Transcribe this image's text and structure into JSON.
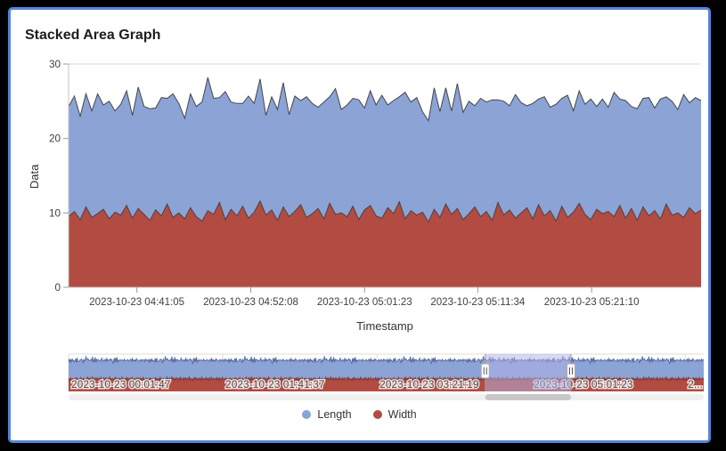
{
  "title": "Stacked Area Graph",
  "colors": {
    "frame_border": "#5585d8",
    "length_fill": "#8ca3d6",
    "width_fill": "#b24b42",
    "edge_stroke": "#454545",
    "nav_length_stroke": "#56689e",
    "nav_width_stroke": "#7c3a34",
    "selection_overlay": "rgba(176,179,230,0.52)"
  },
  "chart_data": {
    "type": "area",
    "stacked": true,
    "title": "Stacked Area Graph",
    "xlabel": "Timestamp",
    "ylabel": "Data",
    "ylim": [
      0,
      30
    ],
    "yticks": [
      0,
      10,
      20,
      30
    ],
    "x_tick_labels": [
      "2023-10-23 04:41:05",
      "2023-10-23 04:52:08",
      "2023-10-23 05:01:23",
      "2023-10-23 05:11:34",
      "2023-10-23 05:21:10"
    ],
    "legend_position": "bottom",
    "grid": true,
    "series": [
      {
        "name": "Width",
        "color": "#b24b42",
        "values": [
          9.5,
          10.2,
          9.1,
          10.8,
          9.4,
          9.9,
          10.5,
          9.2,
          10.1,
          9.7,
          11.0,
          9.3,
          10.6,
          9.8,
          9.0,
          10.4,
          9.6,
          11.2,
          9.4,
          10.0,
          9.2,
          10.7,
          9.5,
          8.9,
          10.3,
          9.8,
          11.4,
          9.1,
          10.5,
          9.6,
          10.9,
          9.3,
          10.1,
          11.6,
          9.7,
          10.4,
          9.0,
          10.8,
          9.5,
          10.2,
          11.1,
          9.4,
          9.9,
          10.6,
          9.2,
          11.3,
          9.8,
          10.0,
          9.5,
          10.9,
          9.1,
          10.4,
          11.0,
          9.6,
          9.3,
          10.7,
          9.9,
          11.5,
          9.2,
          10.3,
          9.7,
          10.1,
          8.8,
          10.5,
          9.4,
          11.2,
          9.8,
          10.6,
          9.1,
          9.9,
          10.8,
          9.5,
          10.2,
          9.0,
          11.4,
          9.7,
          10.4,
          9.3,
          10.0,
          10.7,
          9.2,
          11.1,
          9.6,
          10.3,
          8.9,
          10.9,
          9.4,
          10.1,
          11.3,
          9.8,
          9.1,
          10.5,
          9.9,
          10.2,
          9.5,
          11.0,
          9.3,
          10.6,
          9.0,
          10.8,
          9.6,
          10.3,
          9.2,
          11.2,
          9.7,
          10.0,
          9.4,
          10.7,
          9.9,
          10.4
        ]
      },
      {
        "name": "Length",
        "color": "#8ca3d6",
        "values": [
          14.8,
          15.5,
          13.9,
          15.2,
          14.3,
          16.1,
          14.0,
          15.8,
          13.6,
          14.9,
          15.4,
          13.8,
          16.3,
          14.5,
          15.0,
          13.7,
          15.9,
          14.2,
          16.6,
          14.7,
          13.5,
          15.3,
          14.8,
          16.0,
          17.9,
          15.6,
          14.1,
          17.2,
          14.4,
          15.1,
          13.8,
          16.4,
          14.6,
          16.4,
          13.4,
          15.2,
          14.9,
          16.7,
          13.7,
          15.5,
          14.0,
          16.2,
          14.8,
          13.6,
          15.7,
          14.3,
          16.9,
          13.9,
          15.0,
          14.5,
          16.1,
          13.7,
          15.4,
          14.9,
          16.5,
          13.8,
          15.2,
          14.1,
          17.0,
          14.6,
          15.8,
          13.5,
          13.6,
          16.3,
          14.2,
          15.6,
          13.9,
          16.8,
          14.4,
          15.1,
          13.6,
          15.9,
          14.7,
          16.2,
          13.8,
          15.3,
          14.0,
          16.6,
          14.8,
          13.7,
          15.5,
          14.2,
          16.0,
          13.9,
          15.7,
          14.5,
          16.4,
          13.6,
          15.1,
          14.8,
          16.2,
          13.8,
          15.4,
          14.0,
          16.7,
          14.3,
          15.8,
          13.7,
          15.0,
          14.6,
          15.9,
          13.8,
          16.1,
          14.4,
          15.3,
          13.9,
          16.5,
          14.1,
          15.6,
          14.7
        ]
      }
    ],
    "navigator": {
      "tick_labels": [
        "2023-10-23 00:01:47",
        "2023-10-23 01:41:37",
        "2023-10-23 03:21:19",
        "2023-10-23 05:01:23",
        "2..."
      ],
      "selection_start_frac": 0.656,
      "selection_end_frac": 0.791
    }
  },
  "legend": {
    "items": [
      {
        "label": "Length",
        "color": "#8ca3d6"
      },
      {
        "label": "Width",
        "color": "#b24b42"
      }
    ]
  }
}
